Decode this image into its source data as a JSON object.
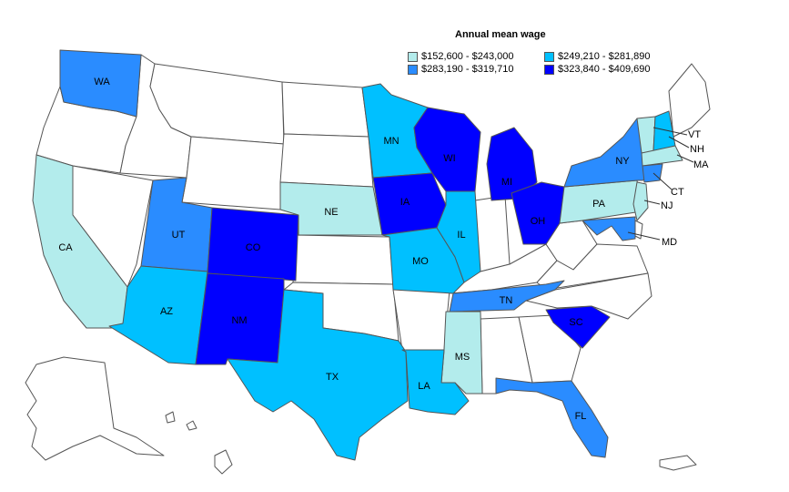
{
  "legend": {
    "title": "Annual mean wage",
    "bins": [
      {
        "label": "$152,600 - $243,000",
        "color": "#b3ecec"
      },
      {
        "label": "$249,210 - $281,890",
        "color": "#00c0ff"
      },
      {
        "label": "$283,190 - $319,710",
        "color": "#2a8cff"
      },
      {
        "label": "$323,840 - $409,690",
        "color": "#0000ff"
      }
    ]
  },
  "colors": {
    "none": "#ffffff",
    "border": "#555555"
  },
  "states": {
    "WA": {
      "label": "WA",
      "bin": 2
    },
    "CA": {
      "label": "CA",
      "bin": 0
    },
    "UT": {
      "label": "UT",
      "bin": 2
    },
    "CO": {
      "label": "CO",
      "bin": 3
    },
    "AZ": {
      "label": "AZ",
      "bin": 1
    },
    "NM": {
      "label": "NM",
      "bin": 3
    },
    "TX": {
      "label": "TX",
      "bin": 1
    },
    "NE": {
      "label": "NE",
      "bin": 0
    },
    "MN": {
      "label": "MN",
      "bin": 1
    },
    "IA": {
      "label": "IA",
      "bin": 3
    },
    "MO": {
      "label": "MO",
      "bin": 1
    },
    "WI": {
      "label": "WI",
      "bin": 3
    },
    "IL": {
      "label": "IL",
      "bin": 1
    },
    "MI": {
      "label": "MI",
      "bin": 3
    },
    "OH": {
      "label": "OH",
      "bin": 3
    },
    "TN": {
      "label": "TN",
      "bin": 2
    },
    "MS": {
      "label": "MS",
      "bin": 0
    },
    "LA": {
      "label": "LA",
      "bin": 1
    },
    "SC": {
      "label": "SC",
      "bin": 3
    },
    "FL": {
      "label": "FL",
      "bin": 2
    },
    "PA": {
      "label": "PA",
      "bin": 0
    },
    "NY": {
      "label": "NY",
      "bin": 2
    },
    "VT": {
      "label": "VT",
      "bin": 0
    },
    "NH": {
      "label": "NH",
      "bin": 1
    },
    "MA": {
      "label": "MA",
      "bin": 0
    },
    "CT": {
      "label": "CT",
      "bin": 2
    },
    "NJ": {
      "label": "NJ",
      "bin": 0
    },
    "MD": {
      "label": "MD",
      "bin": 2
    }
  }
}
